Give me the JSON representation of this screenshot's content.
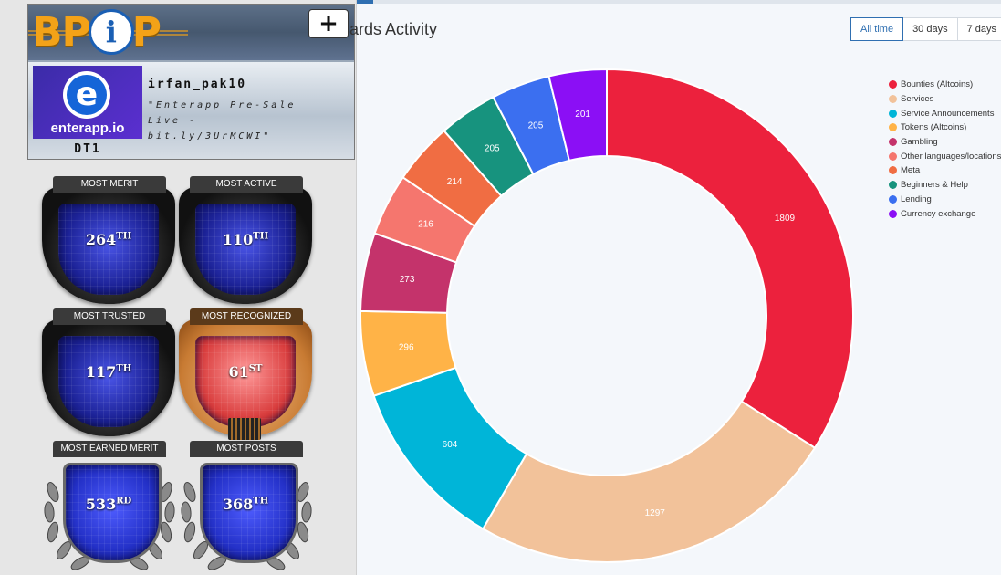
{
  "profile": {
    "add_label": "+",
    "avatar_site": "enterapp.io",
    "avatar_letter": "e",
    "rank": "DT1",
    "username": "irfan_pak10",
    "signature_lines": [
      "\"Enterapp Pre-Sale",
      "Live -",
      "bit.ly/3UrMCWI\""
    ]
  },
  "logo": {
    "text_left": "BP",
    "text_mid": "i",
    "text_right": "P"
  },
  "badges": [
    {
      "title": "MOST MERIT",
      "rank": "264",
      "suffix": "TH"
    },
    {
      "title": "MOST ACTIVE",
      "rank": "110",
      "suffix": "TH"
    },
    {
      "title": "MOST TRUSTED",
      "rank": "117",
      "suffix": "TH"
    },
    {
      "title": "MOST RECOGNIZED",
      "rank": "61",
      "suffix": "ST"
    },
    {
      "title": "MOST EARNED MERIT",
      "rank": "533",
      "suffix": "RD"
    },
    {
      "title": "MOST POSTS",
      "rank": "368",
      "suffix": "TH"
    }
  ],
  "chart_header": {
    "title": "ards Activity",
    "tabs": [
      {
        "label": "All time",
        "active": true
      },
      {
        "label": "30 days",
        "active": false
      },
      {
        "label": "7 days",
        "active": false
      }
    ]
  },
  "chart_data": {
    "type": "pie",
    "donut": true,
    "title": "ards Activity",
    "legend_position": "top-right",
    "categories": [
      "Bounties (Altcoins)",
      "Services",
      "Service Announcements",
      "Tokens (Altcoins)",
      "Gambling",
      "Other languages/locations",
      "Meta",
      "Beginners & Help",
      "Lending",
      "Currency exchange"
    ],
    "values": [
      1809,
      1297,
      604,
      296,
      273,
      216,
      214,
      205,
      205,
      201
    ],
    "colors": [
      "#ec213d",
      "#f2c29a",
      "#00b5d8",
      "#ffb347",
      "#c4336b",
      "#f5766e",
      "#f06d43",
      "#17937e",
      "#3b6ff0",
      "#8b0ff5"
    ]
  }
}
